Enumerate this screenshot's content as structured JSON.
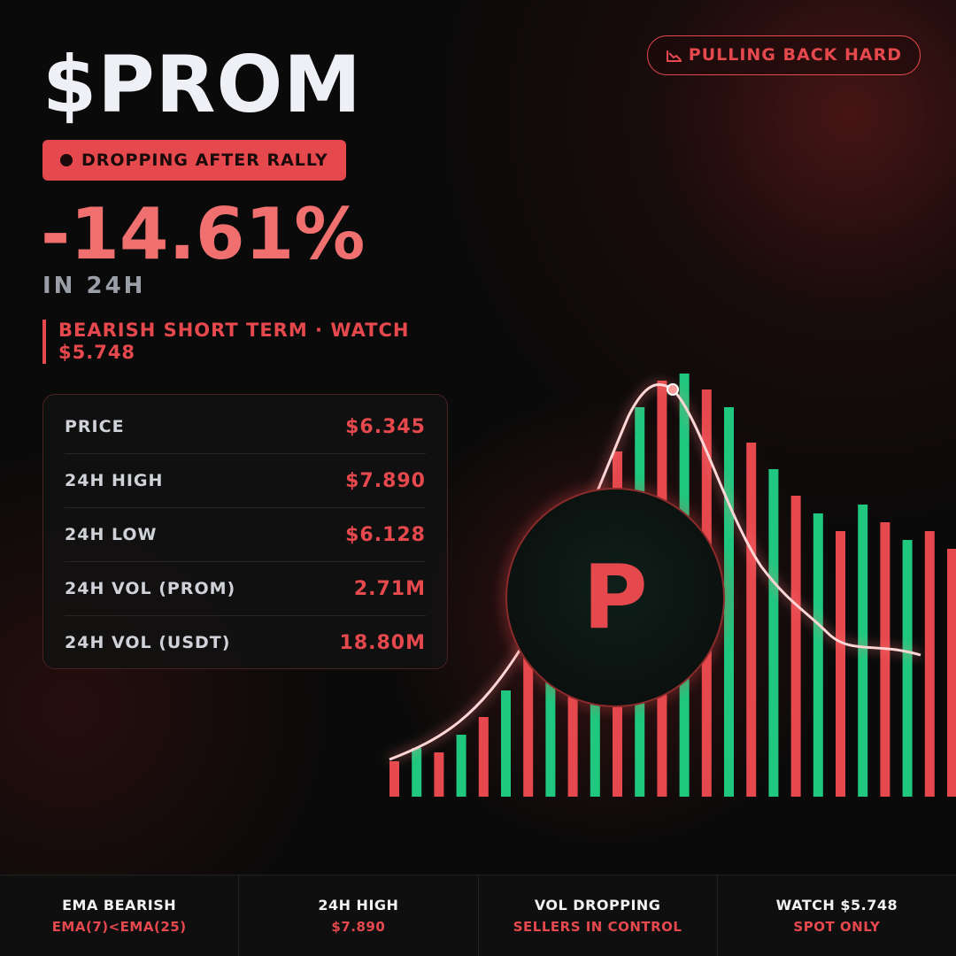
{
  "header": {
    "title": "$PROM",
    "status": "DROPPING AFTER RALLY",
    "change": "-14.61%",
    "period": "IN 24H",
    "note": "BEARISH SHORT TERM · WATCH $5.748",
    "trend": "PULLING BACK HARD"
  },
  "logo": {
    "letter": "P"
  },
  "stats": {
    "rows": [
      [
        "PRICE",
        "$6.345"
      ],
      [
        "24H HIGH",
        "$7.890"
      ],
      [
        "24H LOW",
        "$6.128"
      ],
      [
        "24H VOL (PROM)",
        "2.71M"
      ],
      [
        "24H VOL (USDT)",
        "18.80M"
      ]
    ]
  },
  "footer": {
    "items": [
      [
        "EMA BEARISH",
        "EMA(7)<EMA(25)"
      ],
      [
        "24H HIGH",
        "$7.890"
      ],
      [
        "VOL DROPPING",
        "SELLERS IN CONTROL"
      ],
      [
        "WATCH $5.748",
        "SPOT ONLY"
      ]
    ]
  }
}
